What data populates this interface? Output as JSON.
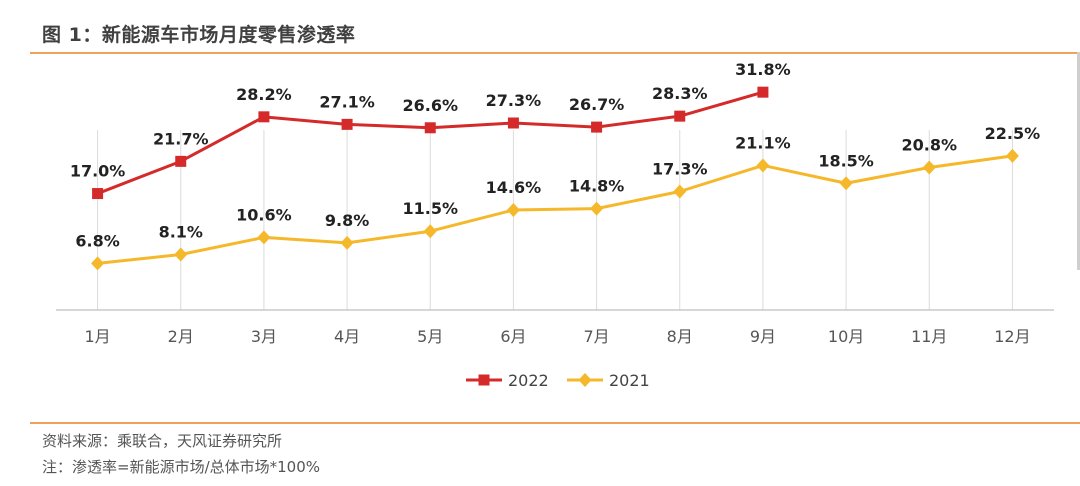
{
  "figure": {
    "title": "图 1：新能源车市场月度零售渗透率"
  },
  "chart_data": {
    "type": "line",
    "categories": [
      "1月",
      "2月",
      "3月",
      "4月",
      "5月",
      "6月",
      "7月",
      "8月",
      "9月",
      "10月",
      "11月",
      "12月"
    ],
    "series": [
      {
        "name": "2022",
        "color": "#d42a2a",
        "marker": "square",
        "values": [
          17.0,
          21.7,
          28.2,
          27.1,
          26.6,
          27.3,
          26.7,
          28.3,
          31.8,
          null,
          null,
          null
        ],
        "labels": [
          "17.0%",
          "21.7%",
          "28.2%",
          "27.1%",
          "26.6%",
          "27.3%",
          "26.7%",
          "28.3%",
          "31.8%",
          "",
          "",
          ""
        ]
      },
      {
        "name": "2021",
        "color": "#f5b82a",
        "marker": "diamond",
        "values": [
          6.8,
          8.1,
          10.6,
          9.8,
          11.5,
          14.6,
          14.8,
          17.3,
          21.1,
          18.5,
          20.8,
          22.5
        ],
        "labels": [
          "6.8%",
          "8.1%",
          "10.6%",
          "9.8%",
          "11.5%",
          "14.6%",
          "14.8%",
          "17.3%",
          "21.1%",
          "18.5%",
          "20.8%",
          "22.5%"
        ]
      }
    ],
    "ylim": [
      0,
      32
    ],
    "y_axis_visible": false,
    "grid": "vertical-category",
    "legend_position": "bottom-center",
    "title": "",
    "xlabel": "",
    "ylabel": ""
  },
  "footnotes": {
    "source": "资料来源：乘联合，天风证券研究所",
    "note": "注：渗透率=新能源市场/总体市场*100%"
  }
}
